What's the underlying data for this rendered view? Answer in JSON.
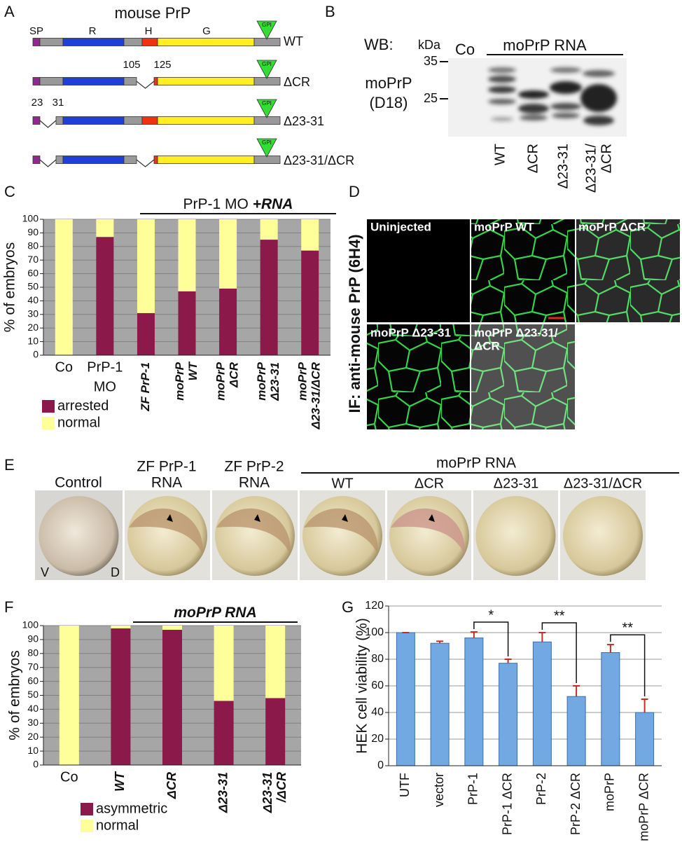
{
  "panel_labels": [
    "A",
    "B",
    "C",
    "D",
    "E",
    "F",
    "G"
  ],
  "panel_a": {
    "title": "mouse PrP",
    "domains": [
      "SP",
      "R",
      "H",
      "G"
    ],
    "gpi": "GPI",
    "constructs": [
      "WT",
      "ΔCR",
      "Δ23-31",
      "Δ23-31/ΔCR"
    ],
    "cr_deletion": [
      "105",
      "125"
    ],
    "n_deletion": [
      "23",
      "31"
    ]
  },
  "panel_b": {
    "method": "WB:",
    "unit": "kDa",
    "control": "Co",
    "group": "moPrP RNA",
    "markers": [
      "35",
      "25"
    ],
    "antibody": [
      "moPrP",
      "(D18)"
    ],
    "lanes": [
      [
        "WT"
      ],
      [
        "ΔCR"
      ],
      [
        "Δ23-31"
      ],
      [
        "Δ23-31/",
        "ΔCR"
      ]
    ]
  },
  "panel_d": {
    "axis_label": "IF: anti-mouse PrP (6H4)",
    "images": [
      [
        "Uninjected"
      ],
      [
        "moPrP WT"
      ],
      [
        "moPrP ΔCR"
      ],
      [
        "moPrP Δ23-31"
      ],
      [
        "moPrP Δ23-31/",
        "ΔCR"
      ]
    ]
  },
  "panel_e": {
    "group": "moPrP RNA",
    "images": [
      [
        "Control"
      ],
      [
        "ZF PrP-1",
        "RNA"
      ],
      [
        "ZF PrP-2",
        "RNA"
      ],
      [
        "WT"
      ],
      [
        "ΔCR"
      ],
      [
        "Δ23-31"
      ],
      [
        "Δ23-31/ΔCR"
      ]
    ],
    "orientation": [
      "V",
      "D"
    ]
  },
  "chart_data": [
    {
      "type": "bar",
      "stacked": true,
      "group_label": "PrP-1 MO",
      "group_label_emphasis": "+RNA",
      "ylabel": "% of embryos",
      "categories": [
        [
          "Co"
        ],
        [
          "PrP-1",
          "MO"
        ],
        [
          "ZF PrP-1"
        ],
        [
          "moPrP",
          "WT"
        ],
        [
          "moPrP",
          "ΔCR"
        ],
        [
          "moPrP",
          "Δ23-31"
        ],
        [
          "moPrP",
          "Δ23-31/ΔCR"
        ]
      ],
      "series": [
        {
          "name": "arrested",
          "color": "#8b1a4b",
          "values": [
            0,
            87,
            31,
            47,
            49,
            85,
            77
          ]
        },
        {
          "name": "normal",
          "color": "#ffff99",
          "values": [
            100,
            13,
            69,
            53,
            51,
            15,
            23
          ]
        }
      ],
      "ylim": [
        0,
        100
      ],
      "yticks": [
        0,
        10,
        20,
        30,
        40,
        50,
        60,
        70,
        80,
        90,
        100
      ],
      "grid": true,
      "background": "#a6a6a6"
    },
    {
      "type": "bar",
      "stacked": true,
      "group_label": "moPrP RNA",
      "ylabel": "% of embryos",
      "categories": [
        [
          "Co"
        ],
        [
          "WT"
        ],
        [
          "ΔCR"
        ],
        [
          "Δ23-31"
        ],
        [
          "Δ23-31",
          "/ΔCR"
        ]
      ],
      "series": [
        {
          "name": "asymmetric",
          "color": "#8b1a4b",
          "values": [
            0,
            98,
            97,
            46,
            48
          ]
        },
        {
          "name": "normal",
          "color": "#ffff99",
          "values": [
            100,
            2,
            3,
            54,
            52
          ]
        }
      ],
      "ylim": [
        0,
        100
      ],
      "yticks": [
        0,
        10,
        20,
        30,
        40,
        50,
        60,
        70,
        80,
        90,
        100
      ],
      "grid": true,
      "background": "#a6a6a6"
    },
    {
      "type": "bar",
      "ylabel": "HEK cell viability (%)",
      "categories": [
        "UTF",
        "vector",
        "PrP-1",
        "PrP-1 ΔCR",
        "PrP-2",
        "PrP-2 ΔCR",
        "moPrP",
        "moPrP ΔCR"
      ],
      "values": [
        100,
        92,
        96,
        77,
        93,
        52,
        85,
        40
      ],
      "errors": [
        0,
        1.5,
        4.5,
        3,
        7,
        8,
        6,
        10
      ],
      "color": "#73a9e2",
      "ylim": [
        0,
        120
      ],
      "yticks": [
        0,
        20,
        40,
        60,
        80,
        100,
        120
      ],
      "grid": true,
      "annotations": [
        {
          "label": "*",
          "between": [
            "PrP-1",
            "PrP-1 ΔCR"
          ]
        },
        {
          "label": "**",
          "between": [
            "PrP-2",
            "PrP-2 ΔCR"
          ]
        },
        {
          "label": "**",
          "between": [
            "moPrP",
            "moPrP ΔCR"
          ]
        }
      ]
    }
  ]
}
